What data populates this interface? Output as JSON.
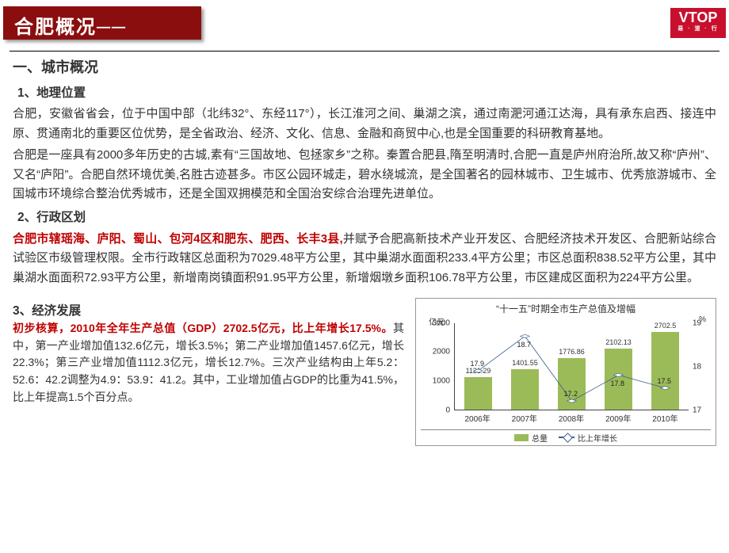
{
  "logo": {
    "brand": "VTOP",
    "sub": "易 · 道 · 行"
  },
  "titleBar": "合肥概况──",
  "section_h1": "一、城市概况",
  "geo": {
    "heading": "1、地理位置",
    "p1": "合肥，安徽省省会，位于中国中部（北纬32°、东经117°），长江淮河之间、巢湖之滨，通过南淝河通江达海，具有承东启西、接连中原、贯通南北的重要区位优势，是全省政治、经济、文化、信息、金融和商贸中心,也是全国重要的科研教育基地。",
    "p2": "合肥是一座具有2000多年历史的古城,素有“三国故地、包拯家乡”之称。秦置合肥县,隋至明清时,合肥一直是庐州府治所,故又称“庐州”、又名“庐阳”。合肥自然环境优美,名胜古迹甚多。市区公园环城走，碧水绕城流，是全国著名的园林城市、卫生城市、优秀旅游城市、全国城市环境综合整治优秀城市，还是全国双拥模范和全国治安综合治理先进单位。"
  },
  "admin": {
    "heading": "2、行政区划",
    "red_lead": "合肥市辖瑶海、庐阳、蜀山、包河4区和肥东、肥西、长丰3县,",
    "rest": "并赋予合肥高新技术产业开发区、合肥经济技术开发区、合肥新站综合试验区市级管理权限。全市行政辖区总面积为7029.48平方公里，其中巢湖水面面积233.4平方公里；市区总面积838.52平方公里，其中巢湖水面面积72.93平方公里，新增南岗镇面积91.95平方公里，新增烟墩乡面积106.78平方公里，市区建成区面积为224平方公里。"
  },
  "econ": {
    "heading": "3、经济发展",
    "red_lead": "初步核算，2010年全年生产总值（GDP）2702.5亿元，比上年增长17.5%。",
    "rest": "其中，第一产业增加值132.6亿元，增长3.5%；第二产业增加值1457.6亿元，增长22.3%；第三产业增加值1112.3亿元，增长12.7%。三次产业结构由上年5.2：52.6：42.2调整为4.9：53.9：41.2。其中，工业增加值占GDP的比重为41.5%，比上年提高1.5个百分点。"
  },
  "chart": {
    "title": "“十一五”时期全市生产总值及增幅",
    "y_left_label": "亿元",
    "y_right_label": "%",
    "categories": [
      "2006年",
      "2007年",
      "2008年",
      "2009年",
      "2010年"
    ],
    "bar_values": [
      1121.29,
      1401.55,
      1776.86,
      2102.13,
      2702.5
    ],
    "line_values": [
      17.9,
      18.7,
      17.2,
      17.8,
      17.5
    ],
    "y_left_ticks": [
      0,
      1000,
      2000,
      3000
    ],
    "y_left_max": 3000,
    "y_right_ticks": [
      17,
      18,
      19
    ],
    "y_right_min": 17,
    "y_right_max": 19,
    "bar_color": "#9bbb59",
    "line_color": "#385d8a",
    "legend": {
      "bar": "总量",
      "line": "比上年增长"
    }
  }
}
